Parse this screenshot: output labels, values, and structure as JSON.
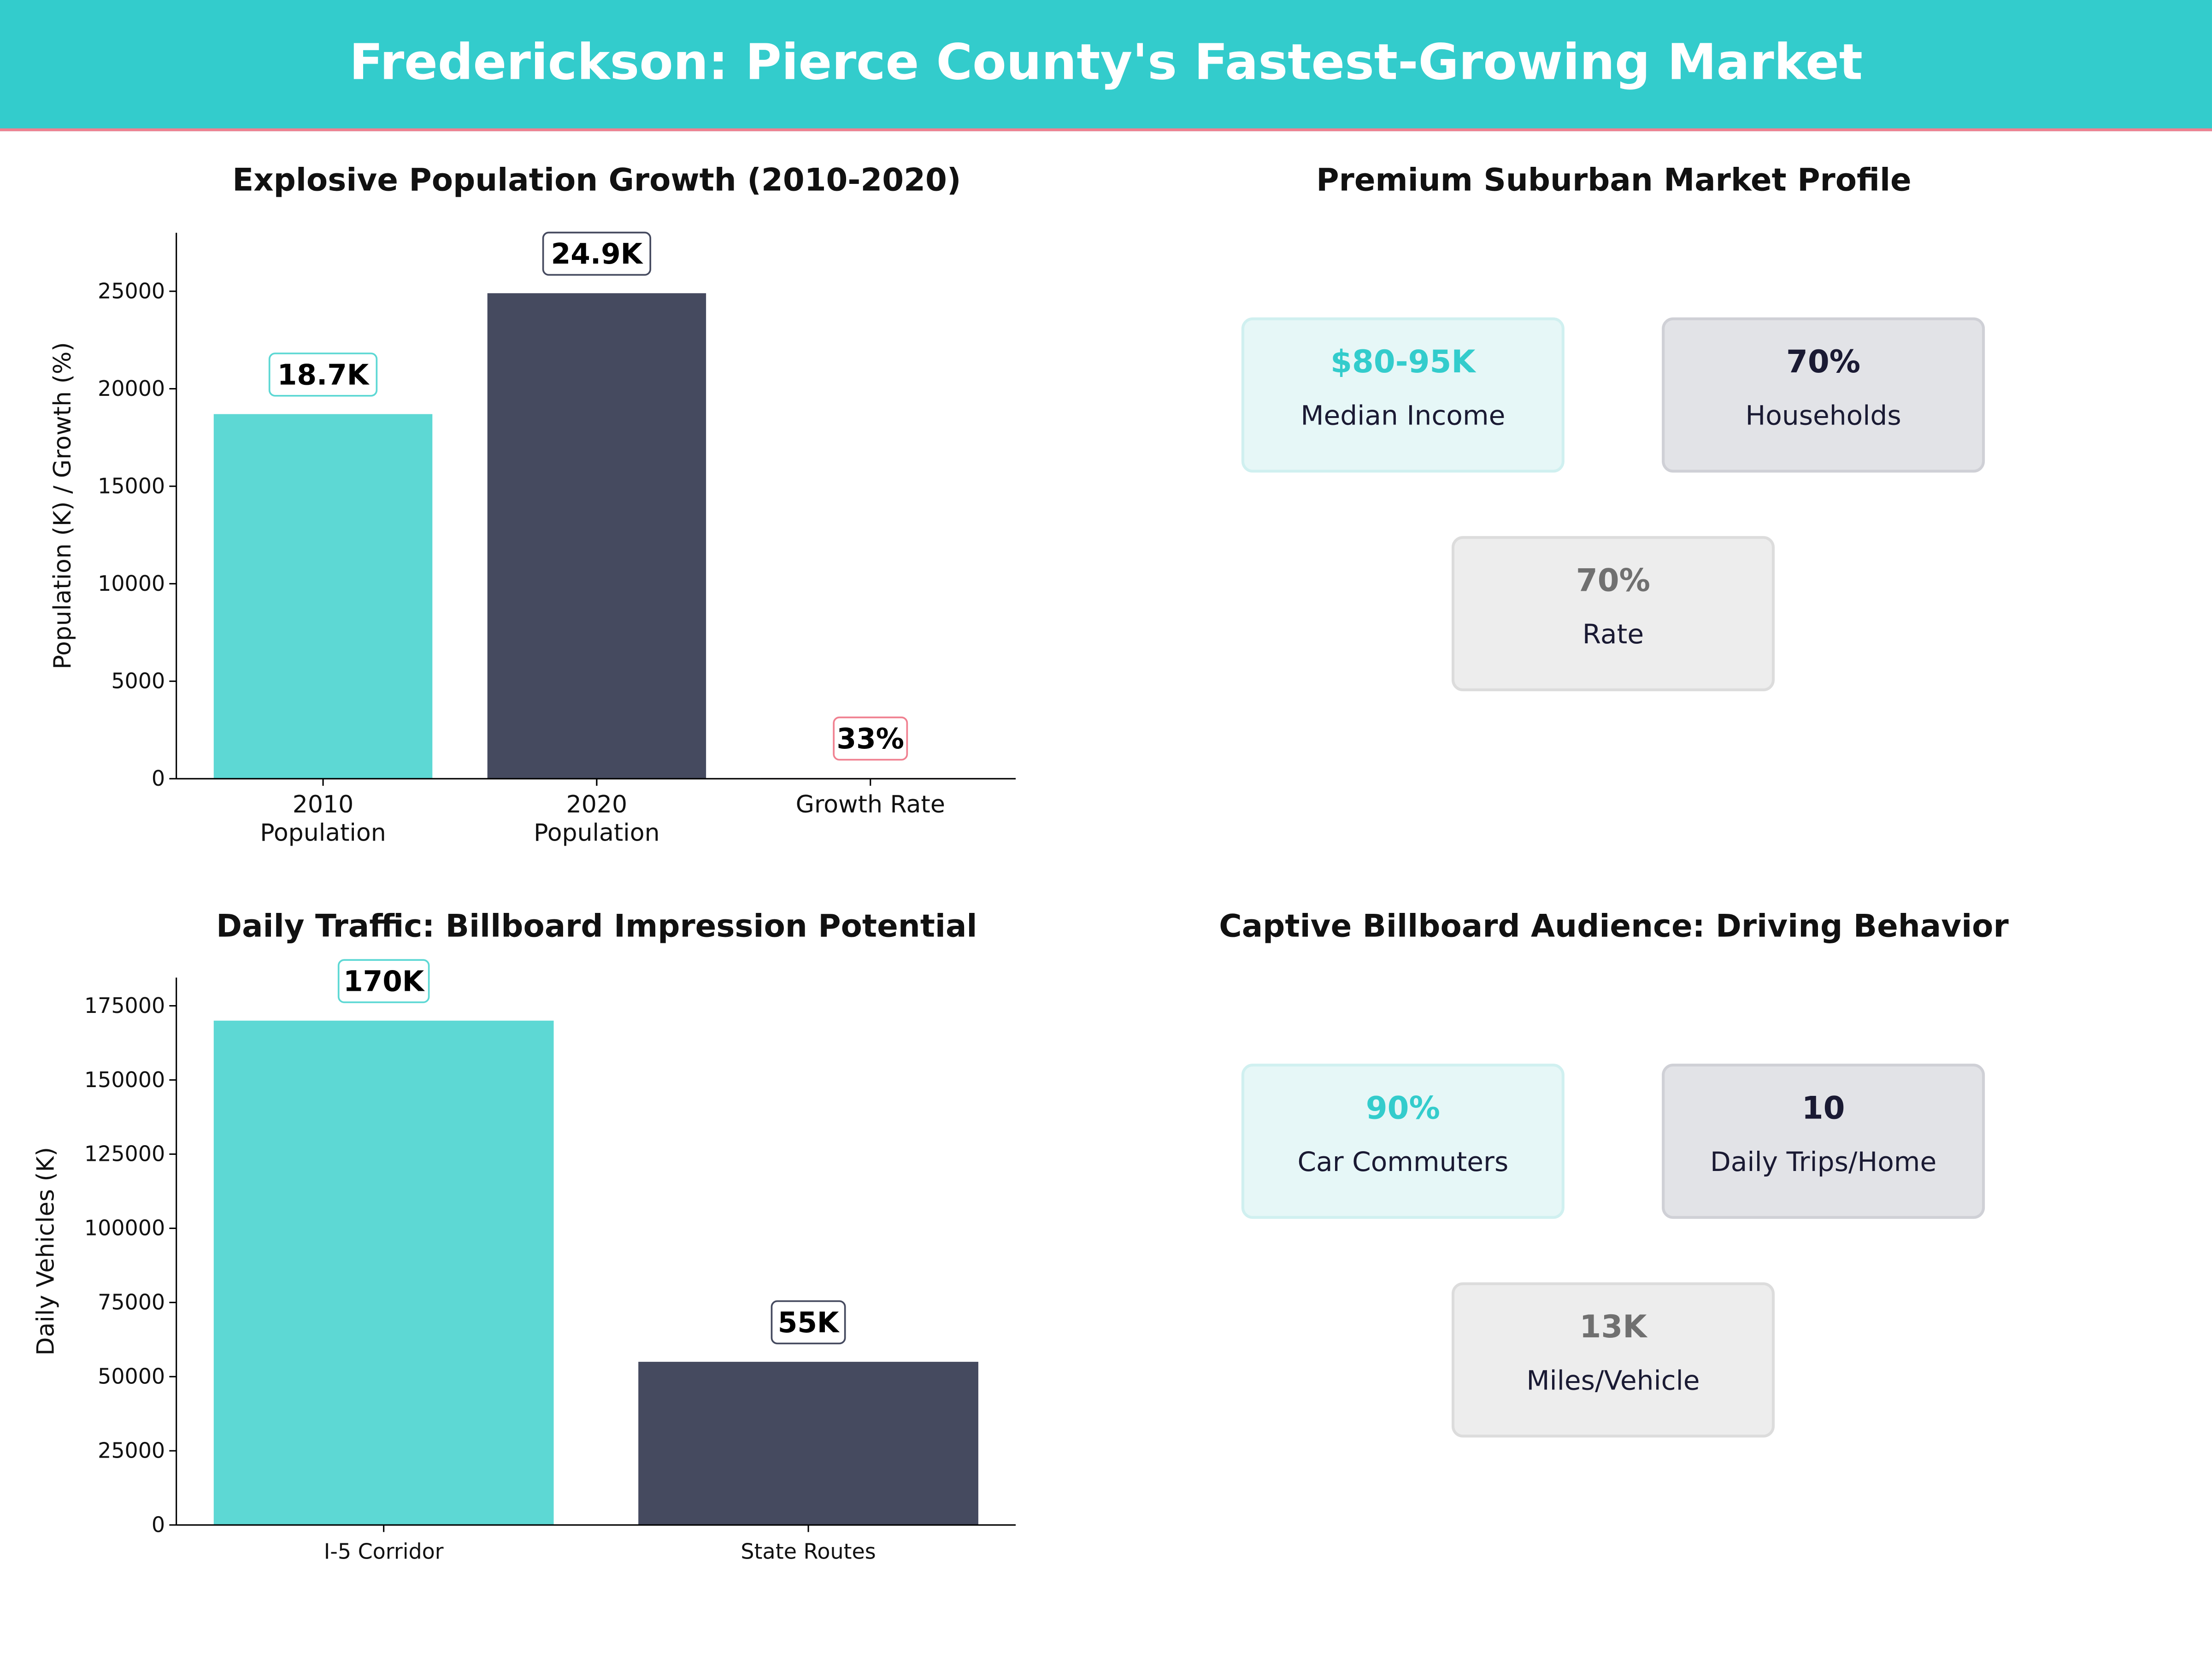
{
  "header": {
    "title": "Frederickson: Pierce County's Fastest-Growing Market"
  },
  "colors": {
    "teal": "#5dd8d4",
    "navy": "#454a5f",
    "pink": "#f08090",
    "header_bg": "#33cccc"
  },
  "chart_data": [
    {
      "type": "bar",
      "title": "Explosive Population Growth (2010-2020)",
      "ylabel": "Population (K) / Growth (%)",
      "categories": [
        "2010\nPopulation",
        "2020\nPopulation",
        "Growth Rate"
      ],
      "values": [
        18700,
        24900,
        33
      ],
      "data_labels": [
        "18.7K",
        "24.9K",
        "33%"
      ],
      "bar_colors": [
        "#5dd8d4",
        "#454a5f",
        "#f08090"
      ],
      "ylim": [
        0,
        28000
      ],
      "yticks": [
        0,
        5000,
        10000,
        15000,
        20000,
        25000
      ],
      "grid": false
    },
    {
      "type": "bar",
      "title": "Daily Traffic: Billboard Impression Potential",
      "ylabel": "Daily Vehicles (K)",
      "categories": [
        "I-5 Corridor",
        "State Routes"
      ],
      "values": [
        170000,
        55000
      ],
      "data_labels": [
        "170K",
        "55K"
      ],
      "bar_colors": [
        "#5dd8d4",
        "#454a5f"
      ],
      "ylim": [
        0,
        184500
      ],
      "yticks": [
        0,
        25000,
        50000,
        75000,
        100000,
        125000,
        150000,
        175000
      ],
      "grid": false
    }
  ],
  "market_profile": {
    "title": "Premium Suburban Market Profile",
    "cards": [
      {
        "value": "$80-95K",
        "label": "Median Income"
      },
      {
        "value": "70%",
        "label": "Households"
      },
      {
        "value": "70%",
        "label": "Rate"
      }
    ]
  },
  "driving": {
    "title": "Captive Billboard Audience: Driving Behavior",
    "cards": [
      {
        "value": "90%",
        "label": "Car Commuters"
      },
      {
        "value": "10",
        "label": "Daily Trips/Home"
      },
      {
        "value": "13K",
        "label": "Miles/Vehicle"
      }
    ]
  }
}
